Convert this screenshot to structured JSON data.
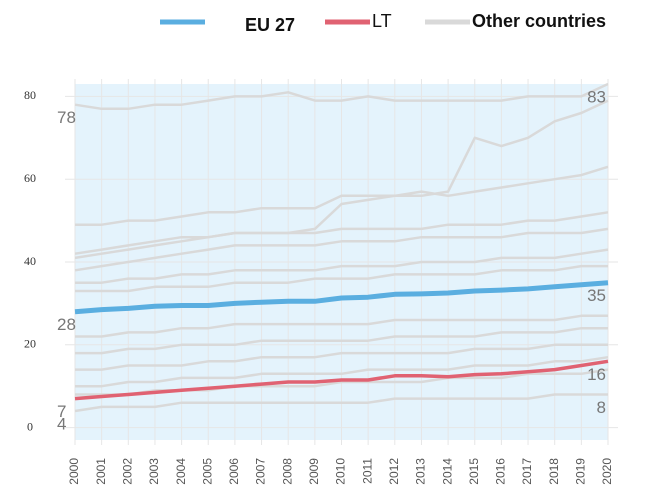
{
  "chart_data": {
    "type": "line",
    "categories": [
      "2000",
      "2001",
      "2002",
      "2003",
      "2004",
      "2005",
      "2006",
      "2007",
      "2008",
      "2009",
      "2010",
      "2011",
      "2012",
      "2013",
      "2014",
      "2015",
      "2016",
      "2017",
      "2018",
      "2019",
      "2020"
    ],
    "ylim": [
      -3,
      83
    ],
    "yticks": [
      0,
      20,
      40,
      60,
      80
    ],
    "grid": true,
    "legend": "top",
    "series": [
      {
        "name": "EU 27",
        "color": "#5aaee0",
        "values": [
          28,
          28.5,
          28.8,
          29.3,
          29.5,
          29.5,
          30,
          30.3,
          30.5,
          30.5,
          31.3,
          31.5,
          32.2,
          32.3,
          32.5,
          33,
          33.2,
          33.5,
          34,
          34.5,
          35
        ],
        "value_labels": [
          "28",
          null,
          null,
          null,
          null,
          null,
          null,
          null,
          null,
          null,
          null,
          null,
          null,
          null,
          null,
          null,
          null,
          null,
          null,
          null,
          "35"
        ]
      },
      {
        "name": "LT",
        "color": "#e06272",
        "values": [
          7,
          7.5,
          8,
          8.5,
          9,
          9.5,
          10,
          10.5,
          11,
          11,
          11.5,
          11.5,
          12.5,
          12.5,
          12.3,
          12.8,
          13,
          13.5,
          14,
          15,
          16
        ],
        "value_labels": [
          "7",
          null,
          null,
          null,
          null,
          null,
          null,
          null,
          null,
          null,
          null,
          null,
          null,
          null,
          null,
          null,
          null,
          null,
          null,
          null,
          "16"
        ]
      },
      {
        "name": "Other countries",
        "color": "#d9d9d9",
        "lines": [
          {
            "values": [
              78,
              77,
              77,
              78,
              78,
              79,
              80,
              80,
              81,
              79,
              79,
              80,
              79,
              79,
              79,
              79,
              79,
              80,
              80,
              80,
              83
            ],
            "value_labels": [
              "78",
              null,
              null,
              null,
              null,
              null,
              null,
              null,
              null,
              null,
              null,
              null,
              null,
              null,
              null,
              null,
              null,
              null,
              null,
              null,
              "83"
            ]
          },
          {
            "values": [
              49,
              49,
              50,
              50,
              51,
              52,
              52,
              53,
              53,
              53,
              56,
              56,
              56,
              56,
              57,
              70,
              68,
              70,
              74,
              76,
              79
            ]
          },
          {
            "values": [
              42,
              43,
              44,
              45,
              46,
              46,
              47,
              47,
              47,
              48,
              54,
              55,
              56,
              57,
              56,
              57,
              58,
              59,
              60,
              61,
              63
            ]
          },
          {
            "values": [
              41,
              42,
              43,
              44,
              45,
              46,
              47,
              47,
              47,
              47,
              48,
              48,
              48,
              48,
              49,
              49,
              49,
              50,
              50,
              51,
              52
            ]
          },
          {
            "values": [
              38,
              39,
              40,
              41,
              42,
              43,
              44,
              44,
              44,
              44,
              45,
              45,
              45,
              46,
              46,
              46,
              46,
              47,
              47,
              47,
              48
            ]
          },
          {
            "values": [
              35,
              35,
              36,
              36,
              37,
              37,
              38,
              38,
              38,
              38,
              39,
              39,
              39,
              40,
              40,
              40,
              41,
              41,
              41,
              42,
              43
            ]
          },
          {
            "values": [
              33,
              33,
              33,
              34,
              34,
              34,
              35,
              35,
              35,
              36,
              36,
              36,
              37,
              37,
              37,
              37,
              38,
              38,
              38,
              39,
              39
            ]
          },
          {
            "values": [
              22,
              22,
              23,
              23,
              24,
              24,
              25,
              25,
              25,
              25,
              25,
              25,
              26,
              26,
              26,
              26,
              26,
              26,
              26,
              27,
              27
            ]
          },
          {
            "values": [
              18,
              18,
              19,
              19,
              20,
              20,
              20,
              21,
              21,
              21,
              21,
              21,
              22,
              22,
              22,
              22,
              23,
              23,
              23,
              24,
              24
            ]
          },
          {
            "values": [
              14,
              14,
              15,
              15,
              15,
              16,
              16,
              17,
              17,
              17,
              18,
              18,
              18,
              18,
              18,
              19,
              19,
              19,
              20,
              20,
              20
            ]
          },
          {
            "values": [
              10,
              10,
              11,
              11,
              12,
              12,
              12,
              13,
              13,
              13,
              13,
              14,
              14,
              14,
              14,
              15,
              15,
              15,
              16,
              16,
              17
            ]
          },
          {
            "values": [
              8,
              8,
              8,
              9,
              9,
              9,
              10,
              10,
              10,
              10,
              11,
              11,
              11,
              11,
              12,
              12,
              12,
              13,
              13,
              13,
              14
            ]
          },
          {
            "values": [
              4,
              5,
              5,
              5,
              6,
              6,
              6,
              6,
              6,
              6,
              6,
              6,
              7,
              7,
              7,
              7,
              7,
              7,
              8,
              8,
              8
            ],
            "value_labels": [
              "4",
              null,
              null,
              null,
              null,
              null,
              null,
              null,
              null,
              null,
              null,
              null,
              null,
              null,
              null,
              null,
              null,
              null,
              null,
              null,
              "8"
            ]
          }
        ]
      }
    ]
  }
}
